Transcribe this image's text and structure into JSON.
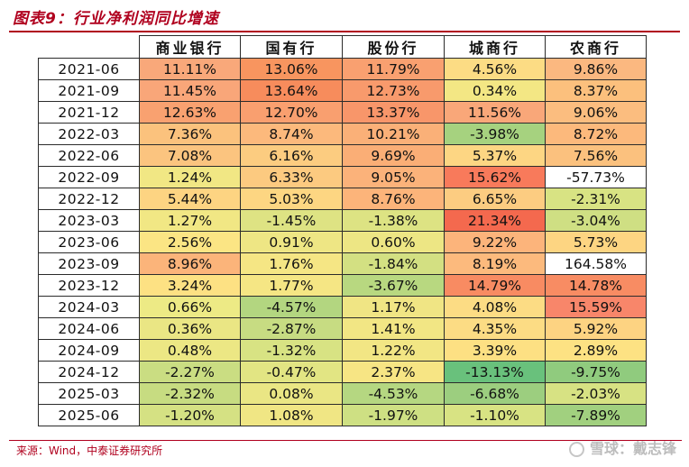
{
  "title": "图表9：行业净利润同比增速",
  "headers": [
    "商业银行",
    "国有行",
    "股份行",
    "城商行",
    "农商行"
  ],
  "rows": [
    {
      "date": "2021-06",
      "values": [
        "11.11%",
        "13.06%",
        "11.79%",
        "4.56%",
        "9.86%"
      ]
    },
    {
      "date": "2021-09",
      "values": [
        "11.45%",
        "13.64%",
        "12.73%",
        "0.34%",
        "8.37%"
      ]
    },
    {
      "date": "2021-12",
      "values": [
        "12.63%",
        "12.70%",
        "13.37%",
        "11.56%",
        "9.06%"
      ]
    },
    {
      "date": "2022-03",
      "values": [
        "7.36%",
        "8.74%",
        "10.21%",
        "-3.98%",
        "8.72%"
      ]
    },
    {
      "date": "2022-06",
      "values": [
        "7.08%",
        "6.16%",
        "9.69%",
        "5.37%",
        "7.56%"
      ]
    },
    {
      "date": "2022-09",
      "values": [
        "1.24%",
        "6.33%",
        "9.05%",
        "15.62%",
        "-57.73%"
      ]
    },
    {
      "date": "2022-12",
      "values": [
        "5.44%",
        "5.03%",
        "8.76%",
        "6.65%",
        "-2.31%"
      ]
    },
    {
      "date": "2023-03",
      "values": [
        "1.27%",
        "-1.45%",
        "-1.38%",
        "21.34%",
        "-3.04%"
      ]
    },
    {
      "date": "2023-06",
      "values": [
        "2.56%",
        "0.91%",
        "0.60%",
        "9.22%",
        "5.73%"
      ]
    },
    {
      "date": "2023-09",
      "values": [
        "8.96%",
        "1.76%",
        "-1.84%",
        "8.19%",
        "164.58%"
      ]
    },
    {
      "date": "2023-12",
      "values": [
        "3.24%",
        "1.77%",
        "-3.67%",
        "14.79%",
        "14.78%"
      ]
    },
    {
      "date": "2024-03",
      "values": [
        "0.66%",
        "-4.57%",
        "1.17%",
        "4.08%",
        "15.59%"
      ]
    },
    {
      "date": "2024-06",
      "values": [
        "0.36%",
        "-2.87%",
        "1.41%",
        "4.35%",
        "5.92%"
      ]
    },
    {
      "date": "2024-09",
      "values": [
        "0.48%",
        "-1.32%",
        "1.22%",
        "3.39%",
        "2.89%"
      ]
    },
    {
      "date": "2024-12",
      "values": [
        "-2.27%",
        "-0.47%",
        "2.37%",
        "-13.13%",
        "-9.75%"
      ]
    },
    {
      "date": "2025-03",
      "values": [
        "-2.32%",
        "0.08%",
        "-4.53%",
        "-6.68%",
        "-2.03%"
      ]
    },
    {
      "date": "2025-06",
      "values": [
        "-1.20%",
        "1.08%",
        "-1.97%",
        "-1.10%",
        "-7.89%"
      ]
    }
  ],
  "cell_colors": [
    [
      "#f9a87a",
      "#f8955f",
      "#f9a070",
      "#fcdc84",
      "#fbb880"
    ],
    [
      "#f9a679",
      "#f78c5c",
      "#f89a6c",
      "#f3e784",
      "#fcc07d"
    ],
    [
      "#f9a170",
      "#f99f6f",
      "#f8966a",
      "#f9a779",
      "#fbbd7f"
    ],
    [
      "#fbc27d",
      "#fcb97c",
      "#fab078",
      "#a6d27f",
      "#fcb97c"
    ],
    [
      "#fbc47f",
      "#fccc80",
      "#faae76",
      "#fdd683",
      "#fbc17e"
    ],
    [
      "#f1e784",
      "#fcca80",
      "#fbb27a",
      "#f87a5b",
      "#ffffff"
    ],
    [
      "#fdd482",
      "#fdd682",
      "#fcb47a",
      "#fccc81",
      "#d8e383"
    ],
    [
      "#f1e784",
      "#dee383",
      "#dde383",
      "#f4694e",
      "#cfdf83"
    ],
    [
      "#fbe584",
      "#eee684",
      "#ede684",
      "#fcb47b",
      "#fdd582"
    ],
    [
      "#fbb47a",
      "#f5e684",
      "#d3e082",
      "#fcba7d",
      "#ffffff"
    ],
    [
      "#fde183",
      "#f5e684",
      "#b8d880",
      "#f88b62",
      "#f88c63"
    ],
    [
      "#edea85",
      "#b3d680",
      "#f0e584",
      "#fcdc84",
      "#f8866a"
    ],
    [
      "#eae684",
      "#c7dc82",
      "#f2e684",
      "#fcdc84",
      "#fdd382"
    ],
    [
      "#ece784",
      "#d8e383",
      "#f2e684",
      "#fde083",
      "#fde283"
    ],
    [
      "#cadd82",
      "#e2e583",
      "#f7e584",
      "#69c17c",
      "#90cb7e"
    ],
    [
      "#c7dc81",
      "#eae684",
      "#b5d781",
      "#9cce7f",
      "#d7e283"
    ],
    [
      "#d5e183",
      "#f0e684",
      "#cee083",
      "#d8e383",
      "#a1d07f"
    ]
  ],
  "source": "来源：Wind，中泰证券研究所",
  "watermark": "雪球：戴志锋"
}
